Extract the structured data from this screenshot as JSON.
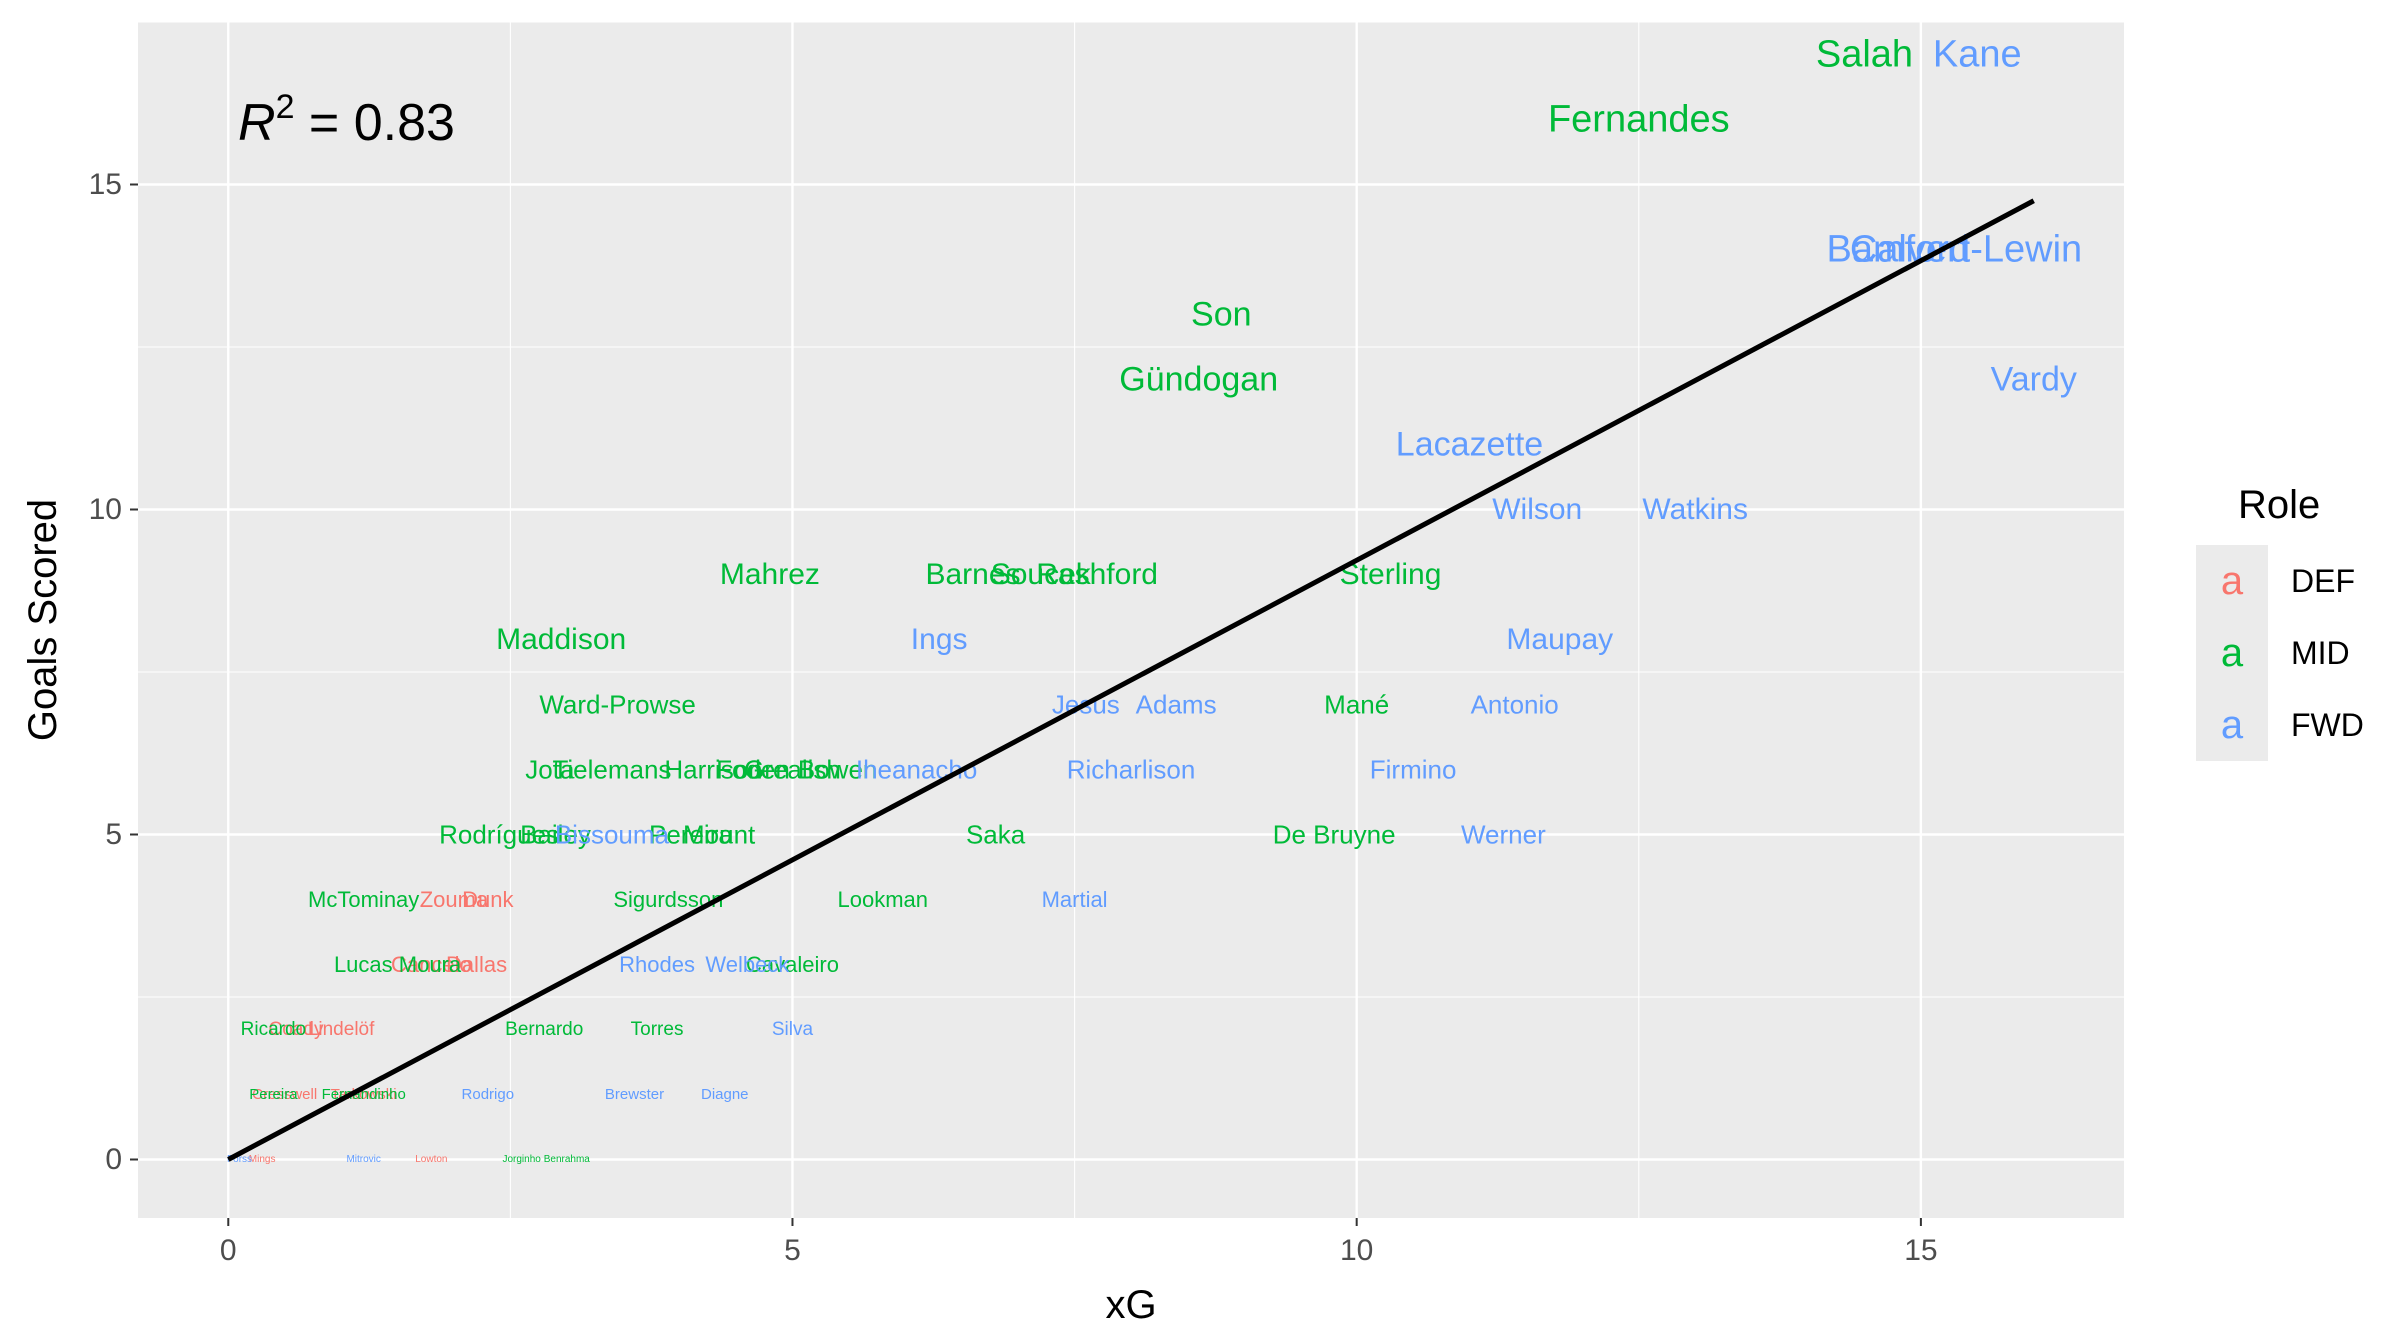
{
  "chart_data": {
    "type": "scatter",
    "xlabel": "xG",
    "ylabel": "Goals Scored",
    "xlim": [
      -0.8,
      16.8
    ],
    "ylim": [
      -0.9,
      17.5
    ],
    "x_ticks": [
      "0",
      "5",
      "10",
      "15"
    ],
    "y_ticks": [
      "0",
      "5",
      "10",
      "15"
    ],
    "grid": true,
    "legend": {
      "title": "Role",
      "position": "right",
      "glyph": "a",
      "entries": [
        {
          "label": "DEF",
          "color": "#F8766D"
        },
        {
          "label": "MID",
          "color": "#00BA38"
        },
        {
          "label": "FWD",
          "color": "#619CFF"
        }
      ]
    },
    "annotation": {
      "symbol": "R",
      "superscript": "2",
      "text": " = 0.83"
    },
    "fit_line": {
      "x": [
        0,
        16
      ],
      "y": [
        0,
        14.75
      ],
      "color": "#000000"
    },
    "series": [
      {
        "name": "DEF",
        "color": "#F8766D",
        "points": [
          {
            "label": "Zouma",
            "x": 2.0,
            "y": 4
          },
          {
            "label": "Dunk",
            "x": 2.3,
            "y": 4
          },
          {
            "label": "Cancelo",
            "x": 1.8,
            "y": 3
          },
          {
            "label": "Dallas",
            "x": 2.2,
            "y": 3
          },
          {
            "label": "Coady",
            "x": 0.6,
            "y": 2
          },
          {
            "label": "Lindelöf",
            "x": 1.0,
            "y": 2
          },
          {
            "label": "Cresswell",
            "x": 0.5,
            "y": 1
          },
          {
            "label": "Tarkowski",
            "x": 1.2,
            "y": 1
          },
          {
            "label": "Mings",
            "x": 0.3,
            "y": 0
          },
          {
            "label": "Lowton",
            "x": 1.8,
            "y": 0
          }
        ]
      },
      {
        "name": "MID",
        "color": "#00BA38",
        "points": [
          {
            "label": "Salah",
            "x": 14.5,
            "y": 17
          },
          {
            "label": "Fernandes",
            "x": 12.5,
            "y": 16
          },
          {
            "label": "Son",
            "x": 8.8,
            "y": 13
          },
          {
            "label": "Gündogan",
            "x": 8.6,
            "y": 12
          },
          {
            "label": "Mahrez",
            "x": 4.8,
            "y": 9
          },
          {
            "label": "Barnes",
            "x": 6.6,
            "y": 9
          },
          {
            "label": "Soucek",
            "x": 7.2,
            "y": 9
          },
          {
            "label": "Rashford",
            "x": 7.7,
            "y": 9
          },
          {
            "label": "Sterling",
            "x": 10.3,
            "y": 9
          },
          {
            "label": "Maddison",
            "x": 2.95,
            "y": 8
          },
          {
            "label": "Ward-Prowse",
            "x": 3.45,
            "y": 7
          },
          {
            "label": "Mané",
            "x": 10.0,
            "y": 7
          },
          {
            "label": "Jota",
            "x": 2.85,
            "y": 6
          },
          {
            "label": "Tielemans",
            "x": 3.4,
            "y": 6
          },
          {
            "label": "Harrison",
            "x": 4.3,
            "y": 6
          },
          {
            "label": "Foden",
            "x": 4.65,
            "y": 6
          },
          {
            "label": "Grealish",
            "x": 5.0,
            "y": 6
          },
          {
            "label": "Bowen",
            "x": 5.4,
            "y": 6
          },
          {
            "label": "Saka",
            "x": 6.8,
            "y": 5
          },
          {
            "label": "De Bruyne",
            "x": 9.8,
            "y": 5
          },
          {
            "label": "Rodrígues",
            "x": 2.4,
            "y": 5
          },
          {
            "label": "Bailey",
            "x": 2.9,
            "y": 5
          },
          {
            "label": "Pereira",
            "x": 4.1,
            "y": 5
          },
          {
            "label": "Mount",
            "x": 4.35,
            "y": 5
          },
          {
            "label": "Lookman",
            "x": 5.8,
            "y": 4
          },
          {
            "label": "McTominay",
            "x": 1.2,
            "y": 4
          },
          {
            "label": "Sigurdsson",
            "x": 3.9,
            "y": 4
          },
          {
            "label": "Cavaleiro",
            "x": 5.0,
            "y": 3
          },
          {
            "label": "Lucas Moura",
            "x": 1.5,
            "y": 3
          },
          {
            "label": "Ricardo",
            "x": 0.4,
            "y": 2
          },
          {
            "label": "Bernardo",
            "x": 2.8,
            "y": 2
          },
          {
            "label": "Torres",
            "x": 3.8,
            "y": 2
          },
          {
            "label": "Pereira",
            "x": 0.4,
            "y": 1
          },
          {
            "label": "Fernandinho",
            "x": 1.2,
            "y": 1
          },
          {
            "label": "Jorginho",
            "x": 2.6,
            "y": 0
          },
          {
            "label": "Benrahma",
            "x": 3.0,
            "y": 0
          }
        ]
      },
      {
        "name": "FWD",
        "color": "#619CFF",
        "points": [
          {
            "label": "Kane",
            "x": 15.5,
            "y": 17
          },
          {
            "label": "Bamford",
            "x": 14.8,
            "y": 14
          },
          {
            "label": "Calvert-Lewin",
            "x": 15.4,
            "y": 14
          },
          {
            "label": "Vardy",
            "x": 16.0,
            "y": 12
          },
          {
            "label": "Lacazette",
            "x": 11.0,
            "y": 11
          },
          {
            "label": "Wilson",
            "x": 11.6,
            "y": 10
          },
          {
            "label": "Watkins",
            "x": 13.0,
            "y": 10
          },
          {
            "label": "Ings",
            "x": 6.3,
            "y": 8
          },
          {
            "label": "Maupay",
            "x": 11.8,
            "y": 8
          },
          {
            "label": "Jesus",
            "x": 7.6,
            "y": 7
          },
          {
            "label": "Adams",
            "x": 8.4,
            "y": 7
          },
          {
            "label": "Antonio",
            "x": 11.4,
            "y": 7
          },
          {
            "label": "Richarlison",
            "x": 8.0,
            "y": 6
          },
          {
            "label": "Firmino",
            "x": 10.5,
            "y": 6
          },
          {
            "label": "Iheanacho",
            "x": 6.1,
            "y": 6
          },
          {
            "label": "Werner",
            "x": 11.3,
            "y": 5
          },
          {
            "label": "Bissouma",
            "x": 3.4,
            "y": 5
          },
          {
            "label": "Martial",
            "x": 7.5,
            "y": 4
          },
          {
            "label": "Welbeck",
            "x": 4.6,
            "y": 3
          },
          {
            "label": "Rhodes",
            "x": 3.8,
            "y": 3
          },
          {
            "label": "Silva",
            "x": 5.0,
            "y": 2
          },
          {
            "label": "Diagne",
            "x": 4.4,
            "y": 1
          },
          {
            "label": "Brewster",
            "x": 3.6,
            "y": 1
          },
          {
            "label": "Rodrigo",
            "x": 2.3,
            "y": 1
          },
          {
            "label": "Forss",
            "x": 0.1,
            "y": 0
          },
          {
            "label": "Mitrovic",
            "x": 1.2,
            "y": 0
          }
        ]
      }
    ]
  }
}
